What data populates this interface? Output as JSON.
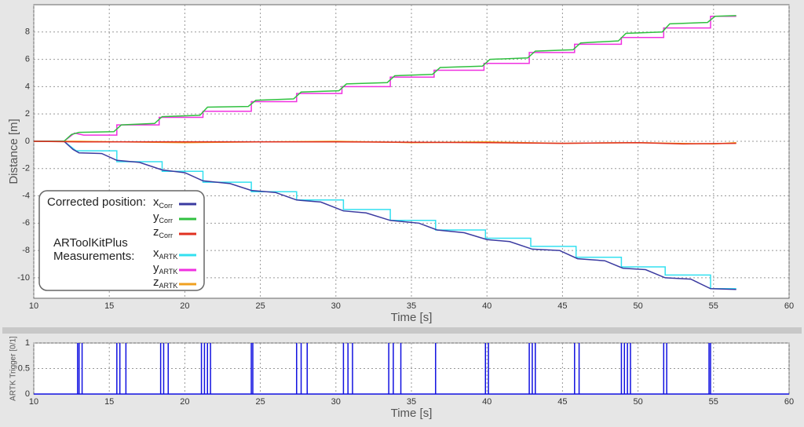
{
  "chart_data": [
    {
      "type": "line",
      "xlabel": "Time [s]",
      "ylabel": "Distance [m]",
      "xlim": [
        10,
        60
      ],
      "xticks": [
        10,
        15,
        20,
        25,
        30,
        35,
        40,
        45,
        50,
        55,
        60
      ],
      "ylim": [
        -11.5,
        10
      ],
      "yticks": [
        -10,
        -8,
        -6,
        -4,
        -2,
        0,
        2,
        4,
        6,
        8
      ],
      "grid": true,
      "legend_labels": [
        "Corrected position:",
        "ARToolKitPlus",
        "Measurements:"
      ],
      "series": [
        {
          "name": "x",
          "subscript": "ARTK",
          "color": "#33e0f0",
          "x": [
            10,
            12,
            12.8,
            15.5,
            15.5,
            18.5,
            18.5,
            21.2,
            21.2,
            24.4,
            24.4,
            27.4,
            27.4,
            30.5,
            30.5,
            33.6,
            33.6,
            36.6,
            36.6,
            39.9,
            39.9,
            42.9,
            42.9,
            45.9,
            45.9,
            48.9,
            48.9,
            51.8,
            51.8,
            54.8,
            54.8,
            56.5
          ],
          "values": [
            0,
            0,
            -0.7,
            -0.7,
            -1.5,
            -1.5,
            -2.2,
            -2.2,
            -3.0,
            -3.0,
            -3.7,
            -3.7,
            -4.3,
            -4.3,
            -5.0,
            -5.0,
            -5.8,
            -5.8,
            -6.5,
            -6.5,
            -7.1,
            -7.1,
            -7.7,
            -7.7,
            -8.5,
            -8.5,
            -9.2,
            -9.2,
            -9.8,
            -9.8,
            -10.8,
            -10.8
          ]
        },
        {
          "name": "y",
          "subscript": "ARTK",
          "color": "#f030e0",
          "x": [
            10,
            12,
            12.7,
            13.3,
            15.5,
            15.5,
            18.3,
            18.3,
            21.2,
            21.2,
            24.4,
            24.4,
            27.4,
            27.4,
            30.4,
            30.4,
            33.6,
            33.6,
            36.5,
            36.5,
            39.8,
            39.8,
            42.8,
            42.8,
            45.8,
            45.8,
            48.9,
            48.9,
            51.7,
            51.7,
            54.8,
            54.8,
            56.5
          ],
          "values": [
            0,
            0,
            0.6,
            0.45,
            0.45,
            1.2,
            1.2,
            1.75,
            1.75,
            2.2,
            2.2,
            2.9,
            2.9,
            3.5,
            3.5,
            4.0,
            4.0,
            4.7,
            4.7,
            5.2,
            5.2,
            5.7,
            5.7,
            6.5,
            6.5,
            7.1,
            7.1,
            7.6,
            7.6,
            8.3,
            8.3,
            9.15,
            9.15
          ]
        },
        {
          "name": "z",
          "subscript": "ARTK",
          "color": "#f0a020",
          "x": [
            10,
            13,
            20,
            25,
            30,
            35,
            40,
            45,
            50,
            55,
            56.5
          ],
          "values": [
            0,
            0,
            -0.1,
            -0.05,
            0,
            -0.1,
            -0.05,
            -0.15,
            -0.1,
            -0.2,
            -0.1
          ]
        },
        {
          "name": "x",
          "subscript": "Corr",
          "color": "#3a3aa0",
          "x": [
            10,
            12,
            12.6,
            13,
            14.5,
            15.5,
            17,
            18.5,
            20,
            21.2,
            23,
            24.4,
            26,
            27.4,
            29,
            30.5,
            32,
            33.6,
            35.5,
            36.7,
            38.5,
            40,
            41.5,
            43,
            44.8,
            46,
            47.8,
            49,
            50.5,
            51.8,
            53.5,
            54.8,
            56.5
          ],
          "values": [
            0,
            0,
            -0.6,
            -0.85,
            -0.9,
            -1.4,
            -1.55,
            -2.1,
            -2.3,
            -2.9,
            -3.1,
            -3.6,
            -3.75,
            -4.3,
            -4.45,
            -5.1,
            -5.25,
            -5.8,
            -6.0,
            -6.5,
            -6.7,
            -7.2,
            -7.35,
            -7.9,
            -8.0,
            -8.6,
            -8.75,
            -9.3,
            -9.4,
            -10.0,
            -10.1,
            -10.8,
            -10.85
          ]
        },
        {
          "name": "y",
          "subscript": "Corr",
          "color": "#30c040",
          "x": [
            10,
            12,
            12.5,
            13,
            15.3,
            15.8,
            18,
            18.5,
            21,
            21.5,
            24.2,
            24.7,
            27.2,
            27.7,
            30.2,
            30.7,
            33.4,
            33.9,
            36.4,
            36.9,
            39.7,
            40.2,
            42.7,
            43.2,
            45.7,
            46.2,
            48.7,
            49.2,
            51.6,
            52.1,
            54.6,
            55.1,
            56.5
          ],
          "values": [
            0,
            0,
            0.5,
            0.65,
            0.7,
            1.2,
            1.3,
            1.8,
            1.9,
            2.5,
            2.55,
            3.0,
            3.1,
            3.6,
            3.7,
            4.2,
            4.3,
            4.8,
            4.9,
            5.4,
            5.5,
            6.0,
            6.1,
            6.6,
            6.7,
            7.2,
            7.35,
            7.9,
            8.0,
            8.6,
            8.7,
            9.15,
            9.2
          ]
        },
        {
          "name": "z",
          "subscript": "Corr",
          "color": "#e03020",
          "x": [
            10,
            13,
            20,
            30,
            40,
            45,
            50,
            53,
            56.5
          ],
          "values": [
            0,
            -0.05,
            -0.05,
            -0.05,
            -0.1,
            -0.15,
            -0.1,
            -0.2,
            -0.15
          ]
        }
      ]
    },
    {
      "type": "stem",
      "xlabel": "Time [s]",
      "ylabel": "ARTK Trigger [0/1]",
      "xlim": [
        10,
        60
      ],
      "xticks": [
        10,
        15,
        20,
        25,
        30,
        35,
        40,
        45,
        50,
        55,
        60
      ],
      "ylim": [
        0,
        1
      ],
      "yticks": [
        0,
        0.5,
        1
      ],
      "grid": true,
      "series": [
        {
          "color": "#1010e0",
          "x": [
            12.9,
            13.0,
            13.2,
            15.5,
            15.7,
            16.1,
            18.4,
            18.6,
            18.9,
            21.1,
            21.3,
            21.5,
            21.7,
            24.4,
            24.5,
            27.4,
            27.7,
            28.1,
            30.5,
            30.8,
            31.1,
            33.5,
            33.8,
            34.3,
            36.6,
            39.9,
            40.1,
            42.8,
            43.0,
            43.2,
            45.8,
            46.1,
            48.9,
            49.1,
            49.3,
            49.5,
            51.7,
            51.9,
            54.7,
            54.8
          ],
          "values": [
            1,
            1,
            1,
            1,
            1,
            1,
            1,
            1,
            1,
            1,
            1,
            1,
            1,
            1,
            1,
            1,
            1,
            1,
            1,
            1,
            1,
            1,
            1,
            1,
            1,
            1,
            1,
            1,
            1,
            1,
            1,
            1,
            1,
            1,
            1,
            1,
            1,
            1,
            1,
            1
          ]
        }
      ]
    }
  ]
}
